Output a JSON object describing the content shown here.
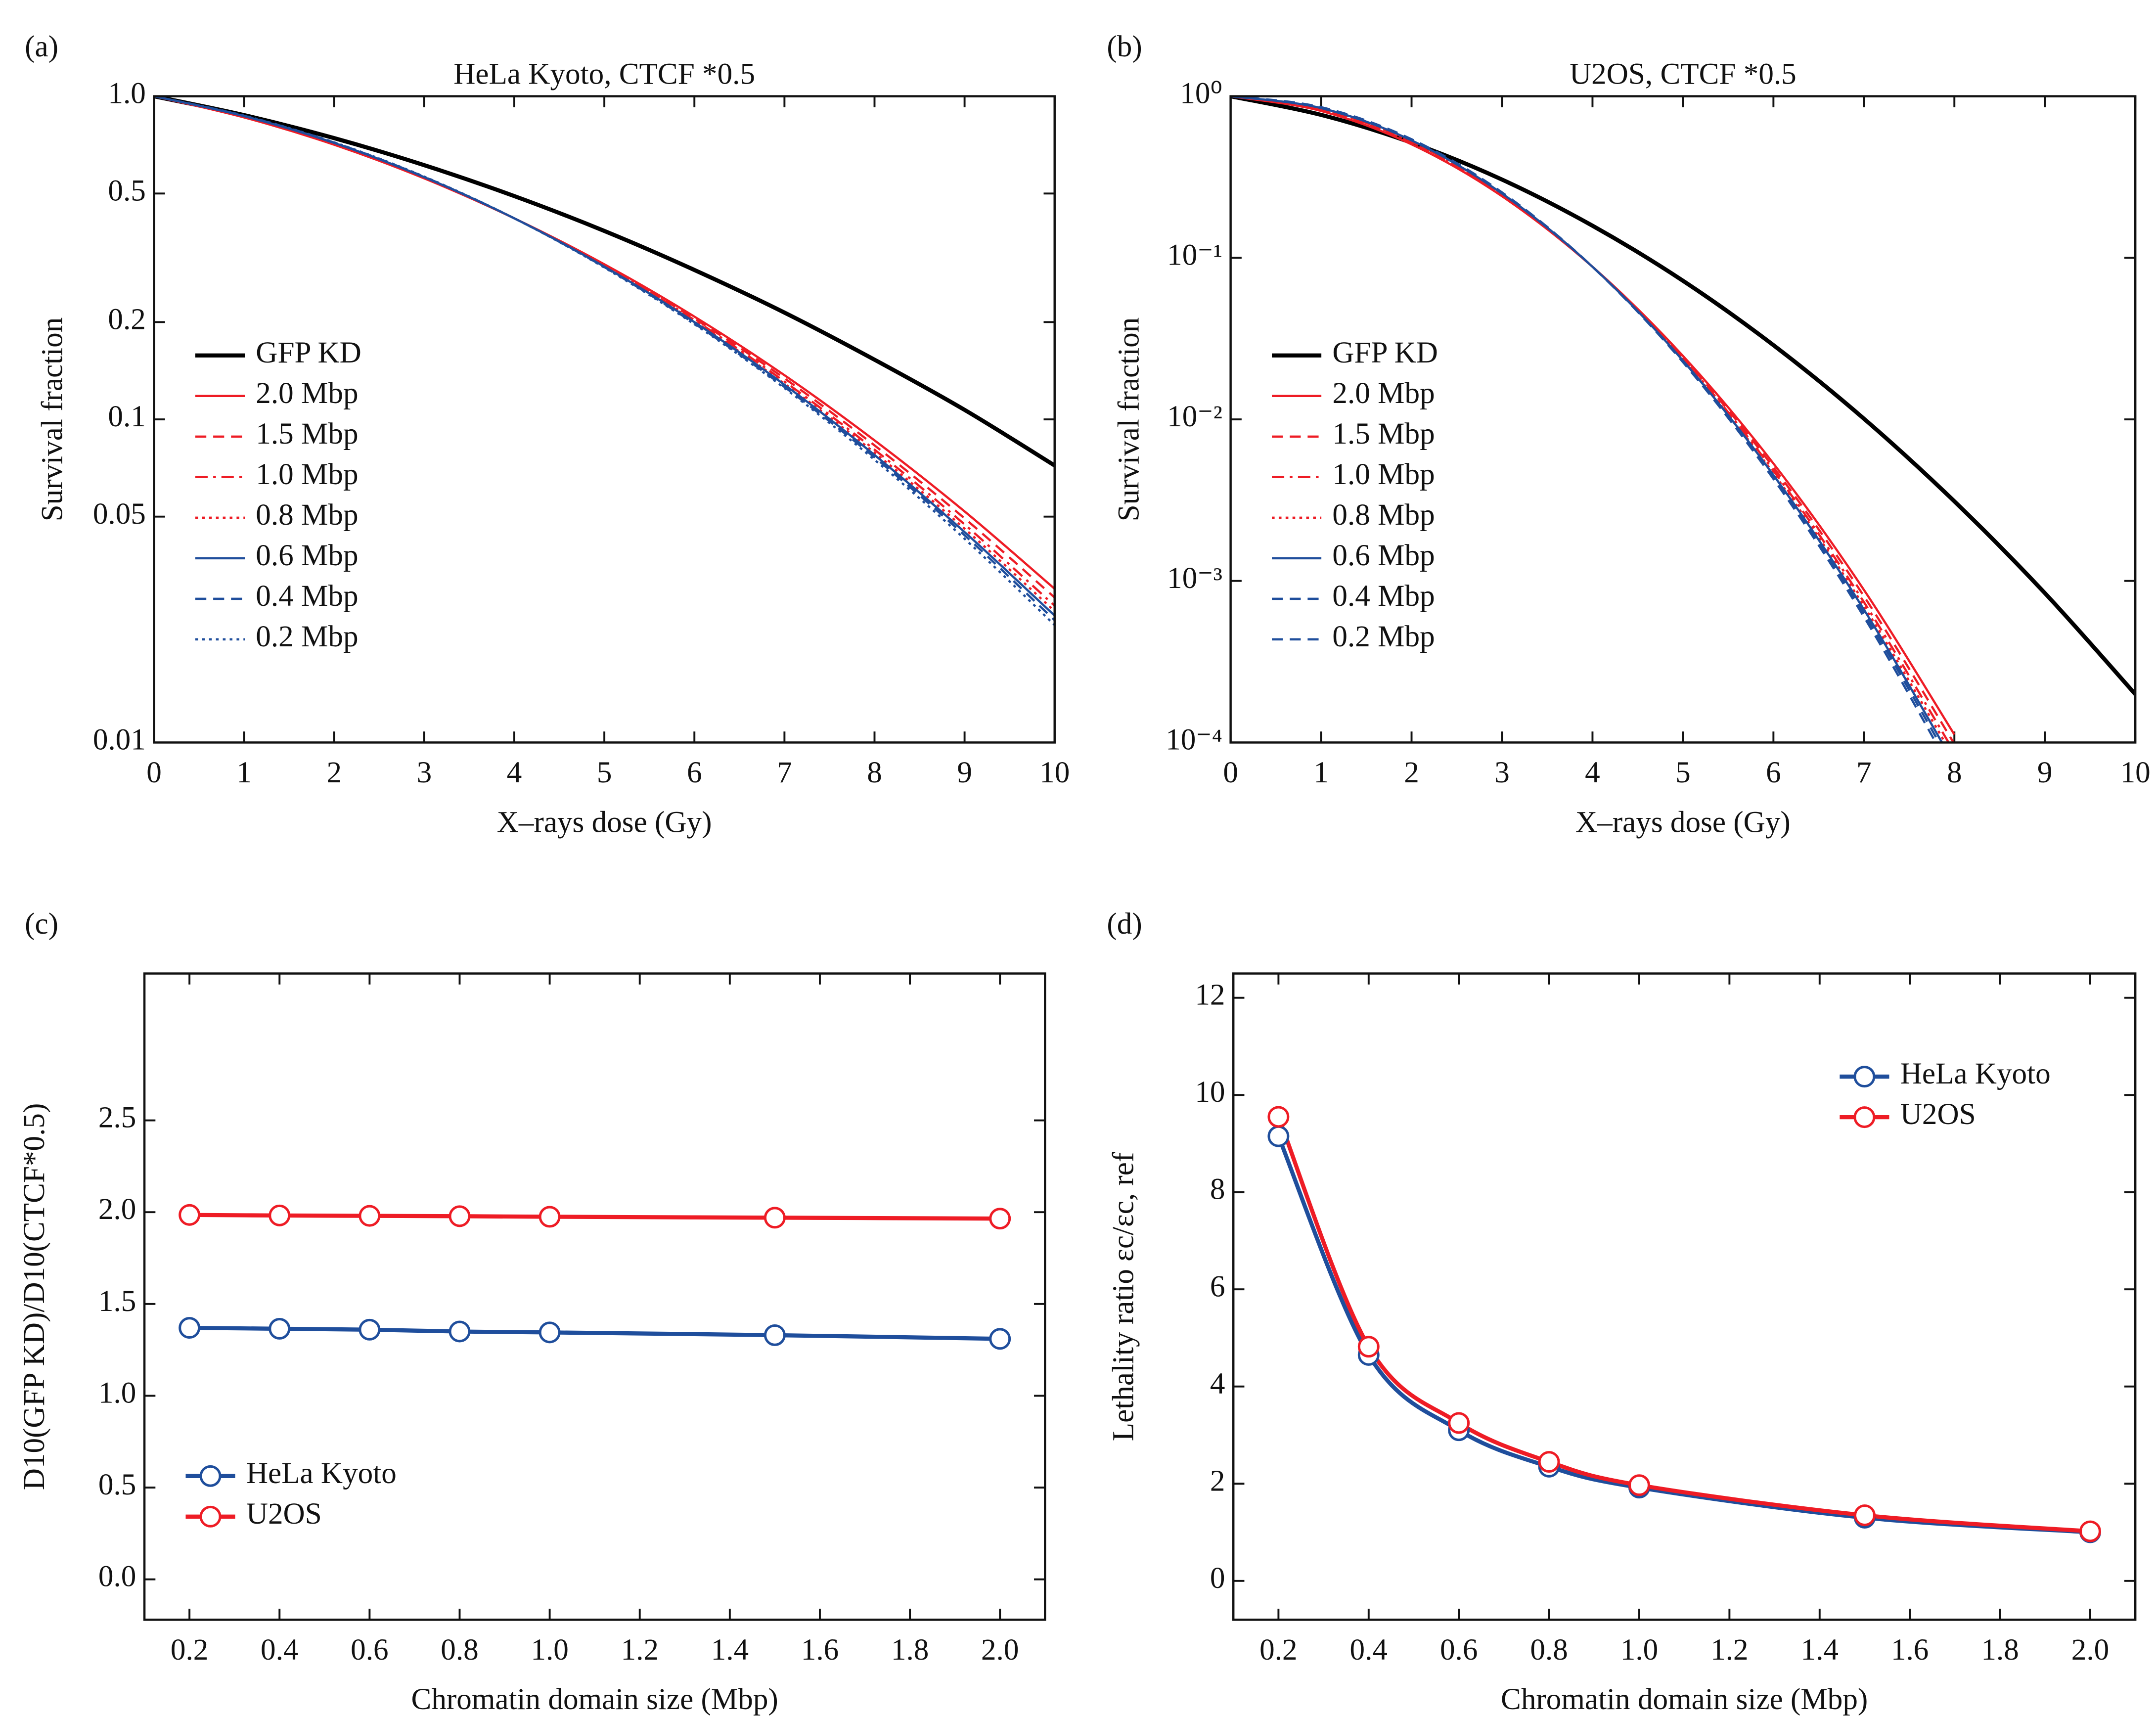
{
  "chart_data": [
    {
      "type": "line",
      "label": "(a)",
      "title": "HeLa Kyoto, CTCF *0.5",
      "xlabel": "X–rays dose (Gy)",
      "ylabel": "Survival fraction",
      "yscale": "log",
      "xlim": [
        0,
        10
      ],
      "xticks": [
        0,
        1,
        2,
        3,
        4,
        5,
        6,
        7,
        8,
        9,
        10
      ],
      "ylim": [
        0.01,
        1
      ],
      "yticks": [
        0.01,
        0.05,
        0.1,
        0.2,
        0.5,
        {
          "value": 1,
          "label": "1.0"
        }
      ],
      "grid": false,
      "legend": "lower left",
      "x": [
        0,
        1,
        2,
        3,
        4,
        5,
        6,
        7,
        8,
        9,
        10
      ],
      "series": [
        {
          "name": "GFP KD",
          "color": "#000000",
          "dash": "solid",
          "values": [
            1,
            0.874,
            0.742,
            0.612,
            0.491,
            0.383,
            0.29,
            0.214,
            0.153,
            0.107,
            0.072
          ]
        },
        {
          "name": "2.0 Mbp",
          "color": "#ee1c25",
          "dash": "solid",
          "values": [
            1,
            0.86,
            0.708,
            0.557,
            0.419,
            0.302,
            0.208,
            0.137,
            0.0861,
            0.0519,
            0.0299
          ]
        },
        {
          "name": "1.5 Mbp",
          "color": "#ee1c25",
          "dash": "dashed",
          "values": [
            1,
            0.863,
            0.711,
            0.559,
            0.419,
            0.3,
            0.205,
            0.134,
            0.0831,
            0.0494,
            0.0281
          ]
        },
        {
          "name": "1.0 Mbp",
          "color": "#ee1c25",
          "dash": "dashdot",
          "values": [
            1,
            0.866,
            0.714,
            0.561,
            0.419,
            0.299,
            0.203,
            0.131,
            0.0806,
            0.0473,
            0.0265
          ]
        },
        {
          "name": "0.8 Mbp",
          "color": "#ee1c25",
          "dash": "dotted",
          "values": [
            1,
            0.867,
            0.716,
            0.562,
            0.419,
            0.297,
            0.201,
            0.129,
            0.0789,
            0.0459,
            0.0255
          ]
        },
        {
          "name": "0.6 Mbp",
          "color": "#1f4e9c",
          "dash": "solid",
          "values": [
            1,
            0.868,
            0.717,
            0.562,
            0.419,
            0.297,
            0.2,
            0.128,
            0.0776,
            0.0448,
            0.0247
          ]
        },
        {
          "name": "0.4 Mbp",
          "color": "#1f4e9c",
          "dash": "dashed",
          "values": [
            1,
            0.87,
            0.719,
            0.563,
            0.419,
            0.296,
            0.198,
            0.126,
            0.0763,
            0.0438,
            0.0239
          ]
        },
        {
          "name": "0.2 Mbp",
          "color": "#1f4e9c",
          "dash": "dotted",
          "values": [
            1,
            0.871,
            0.72,
            0.564,
            0.419,
            0.295,
            0.197,
            0.125,
            0.075,
            0.0427,
            0.0231
          ]
        }
      ]
    },
    {
      "type": "line",
      "label": "(b)",
      "title": "U2OS, CTCF *0.5",
      "xlabel": "X–rays dose (Gy)",
      "ylabel": "Survival fraction",
      "yscale": "log",
      "xlim": [
        0,
        10
      ],
      "xticks": [
        0,
        1,
        2,
        3,
        4,
        5,
        6,
        7,
        8,
        9,
        10
      ],
      "ylim": [
        0.0001,
        1
      ],
      "yticks": [
        {
          "value": 0.0001,
          "label": "10⁻⁴"
        },
        {
          "value": 0.001,
          "label": "10⁻³"
        },
        {
          "value": 0.01,
          "label": "10⁻²"
        },
        {
          "value": 0.1,
          "label": "10⁻¹"
        },
        {
          "value": 1,
          "label": "10⁰"
        }
      ],
      "grid": false,
      "legend": "lower left",
      "x": [
        0,
        1,
        2,
        3,
        4,
        5,
        6,
        7,
        8,
        9,
        10
      ],
      "series": [
        {
          "name": "GFP KD",
          "color": "#000000",
          "dash": "solid",
          "values": [
            1,
            0.767,
            0.516,
            0.305,
            0.158,
            0.0721,
            0.0288,
            0.0101,
            0.00311,
            0.000841,
            0.000199
          ]
        },
        {
          "name": "2.0 Mbp",
          "color": "#ee1c25",
          "dash": "solid",
          "values": [
            1,
            0.811,
            0.504,
            0.2405,
            0.088,
            0.0247,
            0.00533,
            0.000881,
            0.000112,
            null,
            null
          ]
        },
        {
          "name": "1.5 Mbp",
          "color": "#ee1c25",
          "dash": "dashed",
          "values": [
            1,
            0.823,
            0.514,
            0.244,
            0.088,
            0.0241,
            0.00505,
            0.000805,
            9.8e-05,
            null,
            null
          ]
        },
        {
          "name": "1.0 Mbp",
          "color": "#ee1c25",
          "dash": "dashdot",
          "values": [
            1,
            0.834,
            0.523,
            0.247,
            0.088,
            0.0237,
            0.00481,
            0.00074,
            8.71e-05,
            null,
            null
          ]
        },
        {
          "name": "0.8 Mbp",
          "color": "#ee1c25",
          "dash": "dotted",
          "values": [
            1,
            0.84,
            0.529,
            0.249,
            0.088,
            0.0233,
            0.00464,
            0.000698,
            7.97e-05,
            null,
            null
          ]
        },
        {
          "name": "0.6 Mbp",
          "color": "#1f4e9c",
          "dash": "solid",
          "values": [
            1,
            0.845,
            0.533,
            0.25,
            0.088,
            0.0231,
            0.00452,
            0.000665,
            7.37e-05,
            null,
            null
          ]
        },
        {
          "name": "0.4 Mbp",
          "color": "#1f4e9c",
          "dash": "dashed",
          "values": [
            1,
            0.851,
            0.538,
            0.252,
            0.088,
            0.0228,
            0.0044,
            0.000634,
            6.8e-05,
            null,
            null
          ]
        },
        {
          "name": "0.2 Mbp",
          "color": "#1f4e9c",
          "dash": "dashed",
          "values": [
            1,
            0.856,
            0.542,
            0.254,
            0.088,
            0.0226,
            0.00428,
            0.0006,
            6.22e-05,
            null,
            null
          ]
        }
      ]
    },
    {
      "type": "line",
      "label": "(c)",
      "xlabel": "Chromatin domain size (Mbp)",
      "ylabel": "D10(GFP KD)/D10(CTCF*0.5)",
      "markers": true,
      "xlim": [
        0.1,
        2.1
      ],
      "xticks": [
        0.2,
        0.4,
        0.6,
        0.8,
        {
          "value": 1,
          "label": "1.0"
        },
        1.2,
        1.4,
        1.6,
        1.8,
        {
          "value": 2,
          "label": "2.0"
        }
      ],
      "ylim": [
        -0.22,
        3.3
      ],
      "yticks": [
        {
          "value": 0,
          "label": "0.0"
        },
        0.5,
        {
          "value": 1,
          "label": "1.0"
        },
        1.5,
        {
          "value": 2,
          "label": "2.0"
        },
        2.5
      ],
      "grid": false,
      "legend": "lower left",
      "x": [
        0.2,
        0.4,
        0.6,
        0.8,
        1.0,
        1.5,
        2.0
      ],
      "series": [
        {
          "name": "HeLa Kyoto",
          "color": "#1f4e9c",
          "dash": "solid",
          "values": [
            1.37,
            1.365,
            1.36,
            1.35,
            1.345,
            1.33,
            1.31
          ]
        },
        {
          "name": "U2OS",
          "color": "#ee1c25",
          "dash": "solid",
          "values": [
            1.985,
            1.982,
            1.98,
            1.978,
            1.975,
            1.97,
            1.965
          ]
        }
      ]
    },
    {
      "type": "line",
      "label": "(d)",
      "xlabel": "Chromatin domain size (Mbp)",
      "ylabel": "Lethality ratio εc/εc, ref",
      "markers": true,
      "xlim": [
        0.1,
        2.1
      ],
      "xticks": [
        0.2,
        0.4,
        0.6,
        0.8,
        {
          "value": 1,
          "label": "1.0"
        },
        1.2,
        1.4,
        1.6,
        1.8,
        {
          "value": 2,
          "label": "2.0"
        }
      ],
      "ylim": [
        -0.8,
        12.5
      ],
      "yticks": [
        0,
        2,
        4,
        6,
        8,
        10,
        12
      ],
      "grid": false,
      "legend": "upper right",
      "x": [
        0.2,
        0.4,
        0.6,
        0.8,
        1.0,
        1.5,
        2.0
      ],
      "series": [
        {
          "name": "HeLa Kyoto",
          "color": "#1f4e9c",
          "dash": "solid",
          "values": [
            9.15,
            4.65,
            3.1,
            2.35,
            1.92,
            1.3,
            1.0
          ]
        },
        {
          "name": "U2OS",
          "color": "#ee1c25",
          "dash": "solid",
          "values": [
            9.55,
            4.82,
            3.25,
            2.45,
            1.97,
            1.35,
            1.02
          ]
        }
      ]
    }
  ]
}
